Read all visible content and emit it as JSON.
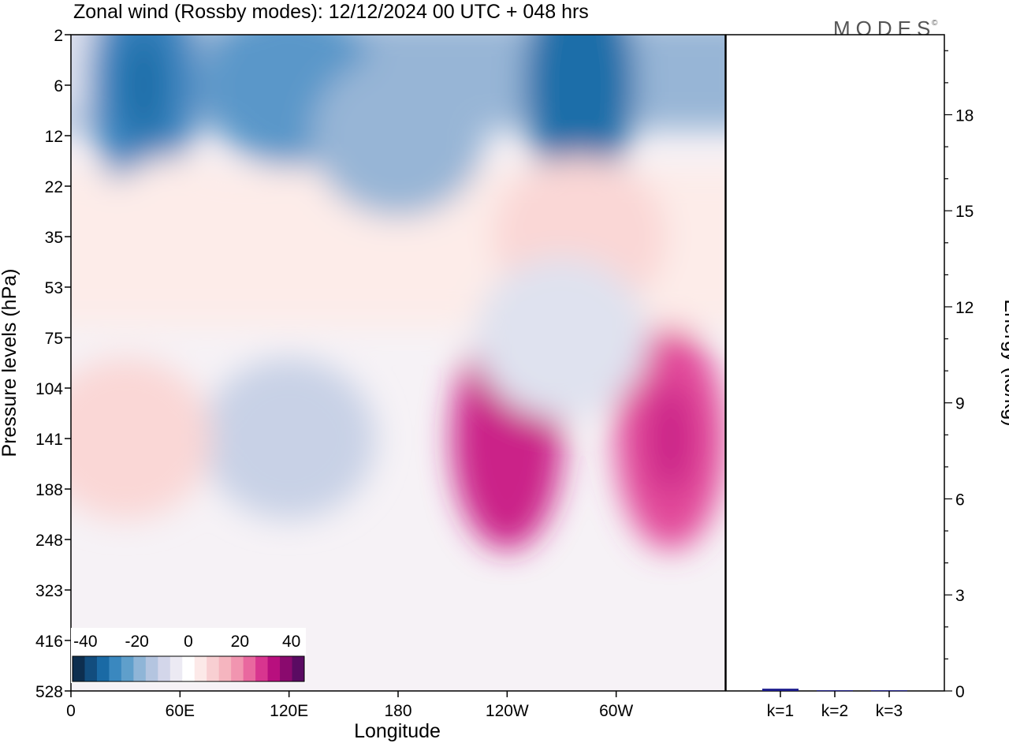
{
  "title": "Zonal wind (Rossby modes):  12/12/2024  00 UTC  + 048 hrs",
  "logo_text": "MODES",
  "logo_mark": "©",
  "chart_data": [
    {
      "type": "heatmap",
      "title": "Zonal wind (Rossby modes):  12/12/2024  00 UTC  + 048 hrs",
      "xlabel": "Longitude",
      "ylabel": "Pressure levels (hPa)",
      "x_ticks": [
        "0",
        "60E",
        "120E",
        "180",
        "120W",
        "60W"
      ],
      "x_tick_values": [
        0,
        60,
        120,
        180,
        240,
        300
      ],
      "xlim": [
        0,
        360
      ],
      "y_ticks": [
        "2",
        "6",
        "12",
        "22",
        "35",
        "53",
        "75",
        "104",
        "141",
        "188",
        "248",
        "323",
        "416",
        "528"
      ],
      "y_scale": "categorical pressure levels, top to bottom",
      "colorbar": {
        "labels": [
          "-40",
          "-20",
          "0",
          "20",
          "40"
        ],
        "label_values": [
          -40,
          -20,
          0,
          20,
          40
        ],
        "range": [
          -45,
          45
        ],
        "colors": [
          "#0d2e4f",
          "#124d7e",
          "#1a6aa5",
          "#3a88bf",
          "#5f9fcb",
          "#8fb5d7",
          "#b4c5e0",
          "#d3d6ea",
          "#eceaf3",
          "#ffffff",
          "#fce9e8",
          "#f8cfd2",
          "#f5b5bf",
          "#f195b0",
          "#e9689f",
          "#d8358f",
          "#b80f7e",
          "#8a0a6e",
          "#5a0b62"
        ]
      },
      "color_scale": {
        "blue": [
          "#dfe2ef",
          "#c8d1e6",
          "#b1c3de",
          "#97b5d6",
          "#79a6cf",
          "#5a97c9",
          "#3a84bf",
          "#1f6ea9"
        ],
        "red": [
          "#fdece9",
          "#fad7d6",
          "#f8bfc5",
          "#f5a1b5",
          "#ef78a8",
          "#e2489a",
          "#cb2288"
        ]
      },
      "field_cells": [
        {
          "lon": 0,
          "level": "2",
          "u": -2
        },
        {
          "lon": 40,
          "level": "6",
          "u": -30
        },
        {
          "lon": 120,
          "level": "6",
          "u": -25
        },
        {
          "lon": 280,
          "level": "6",
          "u": -35
        },
        {
          "lon": 180,
          "level": "12",
          "u": -15
        },
        {
          "lon": 60,
          "level": "35",
          "u": 5
        },
        {
          "lon": 280,
          "level": "35",
          "u": 8
        },
        {
          "lon": 120,
          "level": "141",
          "u": -5
        },
        {
          "lon": 30,
          "level": "141",
          "u": 10
        },
        {
          "lon": 240,
          "level": "141",
          "u": 40
        },
        {
          "lon": 330,
          "level": "141",
          "u": 35
        },
        {
          "lon": 270,
          "level": "75",
          "u": -2
        }
      ]
    },
    {
      "type": "bar",
      "categories": [
        "k=1",
        "k=2",
        "k=3"
      ],
      "values": [
        0.07,
        0.02,
        0.02
      ],
      "ylabel": "Energy (kJ/kg)",
      "ylim": [
        0,
        20.5
      ],
      "y_ticks": [
        0,
        3,
        6,
        9,
        12,
        15,
        18
      ],
      "bar_color": "#1a1a8c"
    }
  ]
}
